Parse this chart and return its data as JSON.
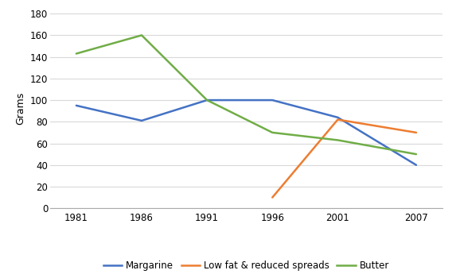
{
  "years": [
    1981,
    1986,
    1991,
    1996,
    2001,
    2007
  ],
  "margarine": [
    95,
    81,
    100,
    100,
    84,
    40
  ],
  "low_fat": [
    null,
    null,
    null,
    10,
    82,
    70
  ],
  "butter": [
    143,
    160,
    100,
    70,
    63,
    50
  ],
  "margarine_color": "#4472C4",
  "low_fat_color": "#ED7D31",
  "butter_color": "#70AD47",
  "ylabel": "Grams",
  "ylim": [
    0,
    185
  ],
  "yticks": [
    0,
    20,
    40,
    60,
    80,
    100,
    120,
    140,
    160,
    180
  ],
  "xtick_labels": [
    "1981",
    "1986",
    "1991",
    "1996",
    "2001",
    "2007"
  ],
  "legend_labels": [
    "Margarine",
    "Low fat & reduced spreads",
    "Butter"
  ],
  "linewidth": 1.8,
  "background_color": "#ffffff",
  "grid_color": "#d9d9d9"
}
